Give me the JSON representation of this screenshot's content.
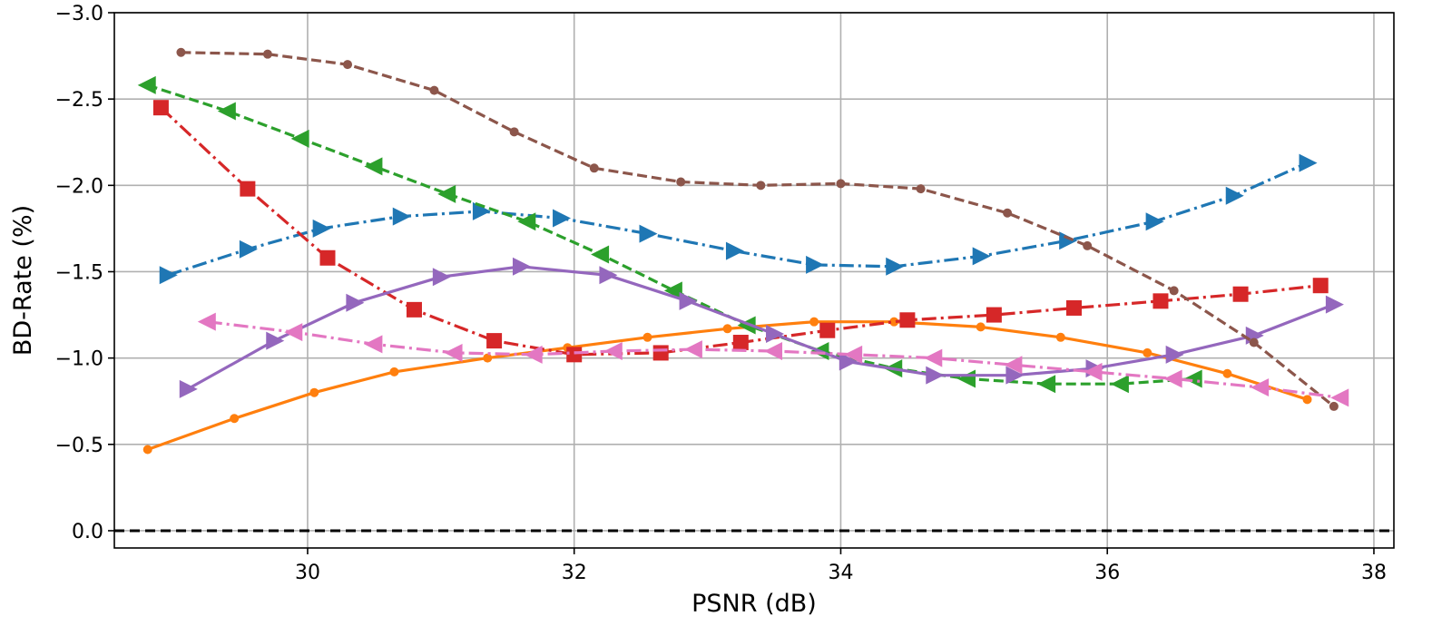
{
  "chart_data": {
    "type": "line",
    "title": "",
    "xlabel": "PSNR (dB)",
    "ylabel": "BD-Rate (%)",
    "xlim": [
      28.55,
      38.15
    ],
    "ylim": [
      0.1,
      -3.0
    ],
    "y_inverted": true,
    "grid": true,
    "legend": "none",
    "xticks": [
      {
        "value": 30,
        "label": "30"
      },
      {
        "value": 32,
        "label": "32"
      },
      {
        "value": 34,
        "label": "34"
      },
      {
        "value": 36,
        "label": "36"
      },
      {
        "value": 38,
        "label": "38"
      }
    ],
    "yticks": [
      {
        "value": -3.0,
        "label": "−3.0"
      },
      {
        "value": -2.5,
        "label": "−2.5"
      },
      {
        "value": -2.0,
        "label": "−2.0"
      },
      {
        "value": -1.5,
        "label": "−1.5"
      },
      {
        "value": -1.0,
        "label": "−1.0"
      },
      {
        "value": -0.5,
        "label": "−0.5"
      },
      {
        "value": 0.0,
        "label": "0.0"
      }
    ],
    "reference_line": {
      "y": 0.0,
      "color": "#000000",
      "dash": "dashed"
    },
    "series": [
      {
        "color": "#1f77b4",
        "marker": "triangle-right",
        "linestyle": "dashdot",
        "x": [
          28.95,
          29.55,
          30.1,
          30.7,
          31.3,
          31.9,
          32.55,
          33.2,
          33.8,
          34.4,
          35.05,
          35.7,
          36.35,
          36.95,
          37.5
        ],
        "y": [
          -1.48,
          -1.63,
          -1.75,
          -1.82,
          -1.85,
          -1.81,
          -1.72,
          -1.62,
          -1.54,
          -1.53,
          -1.59,
          -1.68,
          -1.79,
          -1.94,
          -2.13
        ]
      },
      {
        "color": "#ff7f0e",
        "marker": "circle",
        "linestyle": "solid",
        "x": [
          28.8,
          29.45,
          30.05,
          30.65,
          31.35,
          31.95,
          32.55,
          33.15,
          33.8,
          34.4,
          35.05,
          35.65,
          36.3,
          36.9,
          37.5
        ],
        "y": [
          -0.47,
          -0.65,
          -0.8,
          -0.92,
          -1.0,
          -1.06,
          -1.12,
          -1.17,
          -1.21,
          -1.21,
          -1.18,
          -1.12,
          -1.03,
          -0.91,
          -0.76
        ]
      },
      {
        "color": "#2ca02c",
        "marker": "triangle-left",
        "linestyle": "dashed",
        "x": [
          28.8,
          29.4,
          29.95,
          30.5,
          31.05,
          31.65,
          32.2,
          32.75,
          33.3,
          33.85,
          34.4,
          34.95,
          35.55,
          36.1,
          36.65
        ],
        "y": [
          -2.58,
          -2.43,
          -2.27,
          -2.11,
          -1.95,
          -1.79,
          -1.6,
          -1.39,
          -1.19,
          -1.04,
          -0.94,
          -0.88,
          -0.85,
          -0.85,
          -0.88
        ]
      },
      {
        "color": "#d62728",
        "marker": "square",
        "linestyle": "dashdot",
        "x": [
          28.9,
          29.55,
          30.15,
          30.8,
          31.4,
          32.0,
          32.65,
          33.25,
          33.9,
          34.5,
          35.15,
          35.75,
          36.4,
          37.0,
          37.6
        ],
        "y": [
          -2.45,
          -1.98,
          -1.58,
          -1.28,
          -1.1,
          -1.02,
          -1.03,
          -1.09,
          -1.16,
          -1.22,
          -1.25,
          -1.29,
          -1.33,
          -1.37,
          -1.42
        ]
      },
      {
        "color": "#9467bd",
        "marker": "triangle-right",
        "linestyle": "solid",
        "x": [
          29.1,
          29.75,
          30.35,
          31.0,
          31.6,
          32.25,
          32.85,
          33.5,
          34.05,
          34.7,
          35.3,
          35.9,
          36.5,
          37.1,
          37.7
        ],
        "y": [
          -0.82,
          -1.1,
          -1.32,
          -1.47,
          -1.53,
          -1.48,
          -1.33,
          -1.14,
          -0.98,
          -0.9,
          -0.9,
          -0.94,
          -1.02,
          -1.13,
          -1.31
        ]
      },
      {
        "color": "#8c564b",
        "marker": "circle",
        "linestyle": "dashed",
        "x": [
          29.05,
          29.7,
          30.3,
          30.95,
          31.55,
          32.15,
          32.8,
          33.4,
          34.0,
          34.6,
          35.25,
          35.85,
          36.5,
          37.1,
          37.7
        ],
        "y": [
          -2.77,
          -2.76,
          -2.7,
          -2.55,
          -2.31,
          -2.1,
          -2.02,
          -2.0,
          -2.01,
          -1.98,
          -1.84,
          -1.65,
          -1.39,
          -1.09,
          -0.72
        ]
      },
      {
        "color": "#e377c2",
        "marker": "triangle-left",
        "linestyle": "dashdot",
        "x": [
          29.25,
          29.9,
          30.5,
          31.1,
          31.7,
          32.3,
          32.9,
          33.5,
          34.1,
          34.7,
          35.3,
          35.9,
          36.5,
          37.15,
          37.75
        ],
        "y": [
          -1.21,
          -1.15,
          -1.08,
          -1.03,
          -1.02,
          -1.04,
          -1.05,
          -1.04,
          -1.02,
          -1.0,
          -0.96,
          -0.92,
          -0.88,
          -0.83,
          -0.77
        ]
      }
    ]
  }
}
